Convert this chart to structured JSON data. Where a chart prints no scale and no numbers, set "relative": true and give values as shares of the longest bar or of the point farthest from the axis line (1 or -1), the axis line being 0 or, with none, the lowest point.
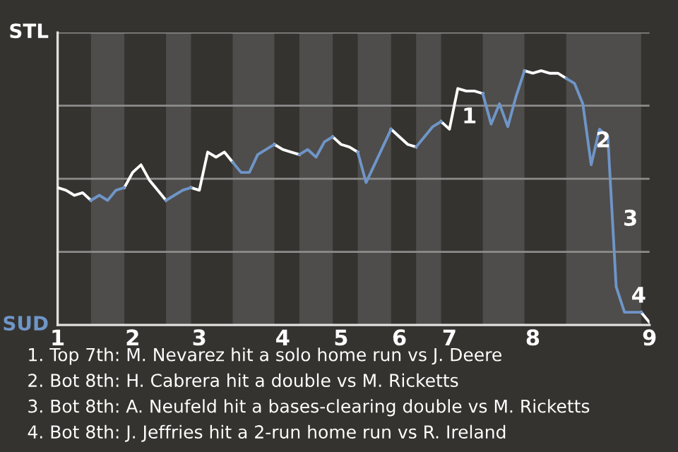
{
  "chart_data": {
    "type": "line",
    "relative": true,
    "categories": [
      "1",
      null,
      null,
      null,
      null,
      null,
      null,
      null,
      null,
      "2",
      null,
      null,
      null,
      null,
      null,
      null,
      null,
      "3",
      null,
      null,
      null,
      null,
      null,
      null,
      null,
      null,
      null,
      "4",
      null,
      null,
      null,
      null,
      null,
      null,
      "5",
      null,
      null,
      null,
      null,
      null,
      null,
      "6",
      null,
      null,
      null,
      null,
      null,
      "7",
      null,
      null,
      null,
      null,
      null,
      null,
      null,
      null,
      null,
      "8",
      null,
      null,
      null,
      null,
      null,
      null,
      null,
      null,
      null,
      null,
      null,
      null,
      null,
      "9"
    ],
    "series": [
      {
        "color": "#ffffff",
        "values": [
          0.54,
          0.53,
          0.51,
          0.52,
          0.49,
          null,
          null,
          null,
          0.54,
          0.6,
          0.63,
          0.57,
          0.53,
          0.49,
          null,
          null,
          0.54,
          0.53,
          0.68,
          0.66,
          0.68,
          0.64,
          null,
          null,
          null,
          null,
          0.71,
          0.69,
          0.68,
          0.67,
          null,
          null,
          null,
          0.74,
          0.71,
          0.7,
          0.68,
          null,
          null,
          null,
          0.77,
          0.74,
          0.71,
          0.7,
          null,
          null,
          0.8,
          0.77,
          0.93,
          0.92,
          0.92,
          0.91,
          null,
          null,
          null,
          null,
          1,
          0.99,
          1,
          0.99,
          0.99,
          0.97,
          null,
          null,
          null,
          null,
          null,
          null,
          null,
          null,
          0.05,
          0.01
        ]
      },
      {
        "color": "#6f95c8",
        "values": [
          null,
          null,
          null,
          null,
          0.49,
          0.51,
          0.49,
          0.53,
          0.54,
          null,
          null,
          null,
          null,
          0.49,
          0.51,
          0.53,
          0.54,
          null,
          null,
          null,
          null,
          0.64,
          0.6,
          0.6,
          0.67,
          0.69,
          0.71,
          null,
          null,
          0.67,
          0.69,
          0.66,
          0.72,
          0.74,
          null,
          null,
          0.68,
          0.56,
          0.63,
          0.7,
          0.77,
          null,
          null,
          0.7,
          0.74,
          0.78,
          0.8,
          null,
          null,
          null,
          null,
          0.91,
          0.79,
          0.87,
          0.78,
          0.9,
          1,
          null,
          null,
          null,
          null,
          0.97,
          0.95,
          0.87,
          0.63,
          0.77,
          0.74,
          0.15,
          0.05,
          0.05,
          0.05,
          null
        ]
      }
    ],
    "grid": "y",
    "line_style": "solid",
    "annotations": [
      "1",
      "2",
      "3",
      "4",
      "STL",
      "SUD",
      "1. Top 7th: M. Nevarez hit a solo home run vs J. Deere",
      "2. Bot 8th: H. Cabrera hit a double vs M. Ricketts",
      "3. Bot 8th: A. Neufeld hit a bases-clearing double vs M. Ricketts",
      "4. Bot 8th: J. Jeffries hit a 2-run home run vs R. Ireland"
    ]
  }
}
